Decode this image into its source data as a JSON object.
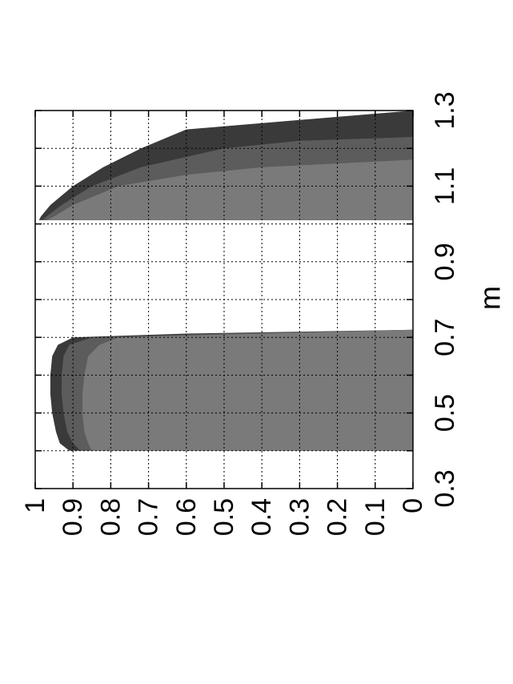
{
  "chart_data": {
    "type": "area",
    "orientation": "rotated-90-ccw",
    "title": "",
    "xlabel": "m",
    "ylabel": "",
    "xlim": [
      0.3,
      1.3
    ],
    "ylim": [
      0,
      1
    ],
    "grid": true,
    "x_ticks": [
      "0.3",
      "0.5",
      "0.7",
      "0.9",
      "1.1",
      "1.3"
    ],
    "y_ticks": [
      "1",
      "0.9",
      "0.8",
      "0.7",
      "0.6",
      "0.5",
      "0.4",
      "0.3",
      "0.2",
      "0.1",
      "0"
    ],
    "colors": [
      "#3a3a3a",
      "#5c5c5c",
      "#7a7a7a"
    ],
    "regions": [
      {
        "x_range": [
          0.4,
          0.72
        ],
        "bands": [
          {
            "color_index": 0,
            "x": [
              0.4,
              0.42,
              0.45,
              0.5,
              0.55,
              0.6,
              0.65,
              0.68,
              0.7,
              0.71,
              0.72
            ],
            "y": [
              0.91,
              0.935,
              0.945,
              0.955,
              0.96,
              0.96,
              0.955,
              0.94,
              0.9,
              0.6,
              0.0
            ]
          },
          {
            "color_index": 1,
            "x": [
              0.4,
              0.42,
              0.45,
              0.5,
              0.55,
              0.6,
              0.65,
              0.68,
              0.7,
              0.71,
              0.72
            ],
            "y": [
              0.88,
              0.9,
              0.915,
              0.925,
              0.93,
              0.93,
              0.925,
              0.91,
              0.85,
              0.5,
              0.0
            ]
          },
          {
            "color_index": 2,
            "x": [
              0.4,
              0.42,
              0.45,
              0.5,
              0.55,
              0.6,
              0.65,
              0.68,
              0.7,
              0.71,
              0.72
            ],
            "y": [
              0.85,
              0.86,
              0.87,
              0.875,
              0.875,
              0.87,
              0.86,
              0.83,
              0.78,
              0.4,
              0.0
            ]
          }
        ]
      },
      {
        "x_range": [
          1.01,
          1.3
        ],
        "bands": [
          {
            "color_index": 0,
            "x": [
              1.01,
              1.02,
              1.05,
              1.1,
              1.15,
              1.2,
              1.25,
              1.3
            ],
            "y": [
              0.99,
              0.985,
              0.96,
              0.9,
              0.82,
              0.72,
              0.6,
              0.0
            ]
          },
          {
            "color_index": 1,
            "x": [
              1.01,
              1.02,
              1.05,
              1.1,
              1.15,
              1.2,
              1.22,
              1.23
            ],
            "y": [
              0.98,
              0.97,
              0.93,
              0.85,
              0.72,
              0.5,
              0.3,
              0.0
            ]
          },
          {
            "color_index": 2,
            "x": [
              1.01,
              1.02,
              1.05,
              1.1,
              1.13,
              1.15,
              1.16,
              1.17
            ],
            "y": [
              0.97,
              0.95,
              0.9,
              0.78,
              0.6,
              0.4,
              0.2,
              0.0
            ]
          }
        ]
      }
    ]
  }
}
